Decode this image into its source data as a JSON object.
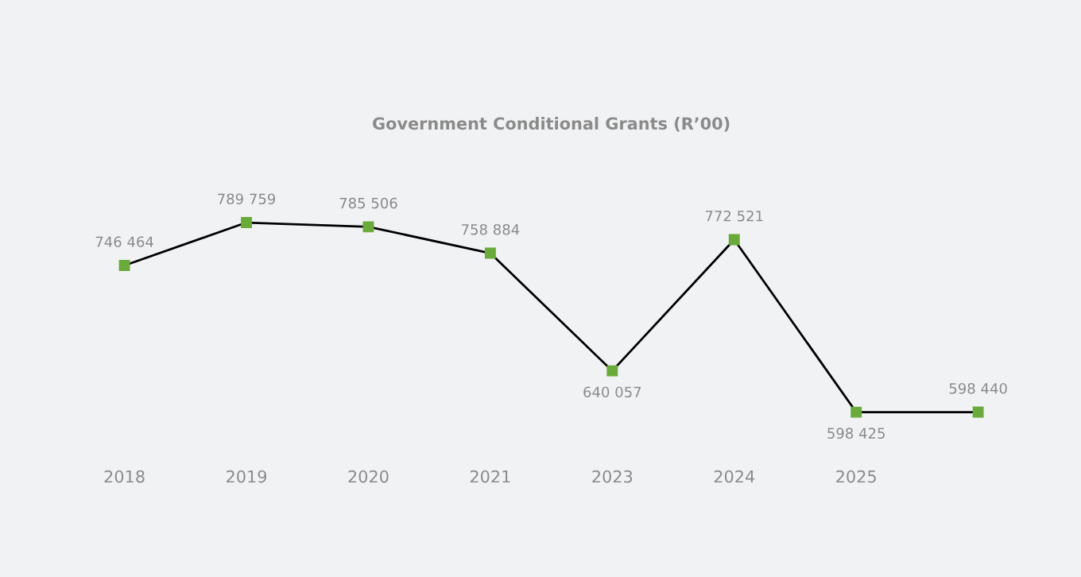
{
  "chart_data": {
    "type": "line",
    "title": "Government Conditional Grants (R’00)",
    "categories": [
      "2018",
      "2019",
      "2020",
      "2021",
      "2023",
      "2024",
      "2025",
      null
    ],
    "series": [
      {
        "color": "#000000",
        "colors": [
          "#6aaa3a",
          "#6aaa3a",
          "#6aaa3a",
          "#6aaa3a",
          "#6aaa3a",
          "#6aaa3a",
          "#6aaa3a",
          "#6aaa3a"
        ],
        "values": [
          746464,
          789759,
          785506,
          758884,
          640057,
          772521,
          598425,
          598440
        ]
      }
    ],
    "data_labels": true,
    "marker": "square",
    "line_style": "solid",
    "grid": false,
    "tick_labels": "x"
  }
}
